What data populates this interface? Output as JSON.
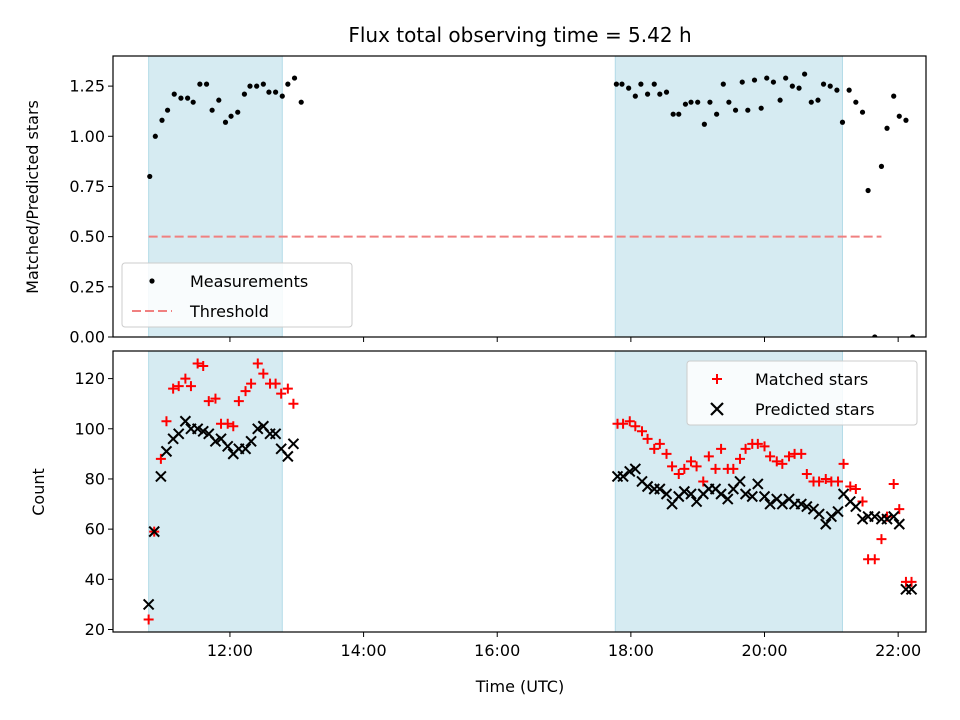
{
  "title": "Flux total observing time = 5.42 h",
  "colors": {
    "shade": "#add8e6",
    "threshold": "#f08080",
    "matched": "#ff0000",
    "predicted": "#000000",
    "measurement": "#000000"
  },
  "chart_data": [
    {
      "type": "scatter",
      "ylabel": "Matched/Predicted stars",
      "ylim": [
        0.0,
        1.4
      ],
      "yticks": [
        "0.00",
        "0.25",
        "0.50",
        "0.75",
        "1.00",
        "1.25"
      ],
      "xlim": [
        "10:15",
        "22:25"
      ],
      "shaded_intervals": [
        [
          "10:47",
          "12:47"
        ],
        [
          "17:46",
          "21:10"
        ]
      ],
      "legend": {
        "placement": "lower-left",
        "entries": [
          "Measurements",
          "Threshold"
        ]
      },
      "threshold": {
        "value": 0.5,
        "from": "10:47",
        "to": "21:45"
      },
      "series": [
        {
          "name": "Measurements",
          "points": [
            [
              "10:48",
              0.8
            ],
            [
              "10:53",
              1.0
            ],
            [
              "10:59",
              1.08
            ],
            [
              "11:04",
              1.13
            ],
            [
              "11:10",
              1.21
            ],
            [
              "11:16",
              1.19
            ],
            [
              "11:22",
              1.19
            ],
            [
              "11:27",
              1.17
            ],
            [
              "11:33",
              1.26
            ],
            [
              "11:39",
              1.26
            ],
            [
              "11:44",
              1.13
            ],
            [
              "11:50",
              1.18
            ],
            [
              "11:56",
              1.07
            ],
            [
              "12:01",
              1.1
            ],
            [
              "12:07",
              1.12
            ],
            [
              "12:13",
              1.21
            ],
            [
              "12:18",
              1.25
            ],
            [
              "12:24",
              1.25
            ],
            [
              "12:30",
              1.26
            ],
            [
              "12:35",
              1.22
            ],
            [
              "12:41",
              1.22
            ],
            [
              "12:47",
              1.2
            ],
            [
              "12:52",
              1.26
            ],
            [
              "12:58",
              1.29
            ],
            [
              "13:04",
              1.17
            ],
            [
              "17:47",
              1.26
            ],
            [
              "17:52",
              1.26
            ],
            [
              "17:58",
              1.24
            ],
            [
              "18:04",
              1.2
            ],
            [
              "18:09",
              1.26
            ],
            [
              "18:15",
              1.21
            ],
            [
              "18:21",
              1.26
            ],
            [
              "18:26",
              1.21
            ],
            [
              "18:32",
              1.22
            ],
            [
              "18:38",
              1.11
            ],
            [
              "18:43",
              1.11
            ],
            [
              "18:49",
              1.16
            ],
            [
              "18:54",
              1.17
            ],
            [
              "19:00",
              1.17
            ],
            [
              "19:06",
              1.06
            ],
            [
              "19:11",
              1.17
            ],
            [
              "19:17",
              1.11
            ],
            [
              "19:23",
              1.26
            ],
            [
              "19:28",
              1.17
            ],
            [
              "19:34",
              1.13
            ],
            [
              "19:40",
              1.27
            ],
            [
              "19:45",
              1.13
            ],
            [
              "19:51",
              1.28
            ],
            [
              "19:57",
              1.14
            ],
            [
              "20:02",
              1.29
            ],
            [
              "20:08",
              1.27
            ],
            [
              "20:14",
              1.18
            ],
            [
              "20:19",
              1.29
            ],
            [
              "20:25",
              1.25
            ],
            [
              "20:31",
              1.24
            ],
            [
              "20:36",
              1.31
            ],
            [
              "20:42",
              1.17
            ],
            [
              "20:48",
              1.18
            ],
            [
              "20:53",
              1.26
            ],
            [
              "20:59",
              1.25
            ],
            [
              "21:05",
              1.23
            ],
            [
              "21:10",
              1.07
            ],
            [
              "21:16",
              1.23
            ],
            [
              "21:22",
              1.17
            ],
            [
              "21:28",
              1.12
            ],
            [
              "21:33",
              0.73
            ],
            [
              "21:39",
              0.0
            ],
            [
              "21:45",
              0.85
            ],
            [
              "21:50",
              1.04
            ],
            [
              "21:56",
              1.2
            ],
            [
              "22:01",
              1.1
            ],
            [
              "22:07",
              1.08
            ],
            [
              "22:13",
              0.0
            ]
          ]
        }
      ]
    },
    {
      "type": "scatter",
      "xlabel": "Time (UTC)",
      "ylabel": "Count",
      "ylim": [
        19,
        131
      ],
      "yticks": [
        "20",
        "40",
        "60",
        "80",
        "100",
        "120"
      ],
      "xlim": [
        "10:15",
        "22:25"
      ],
      "xticks": [
        "12:00",
        "14:00",
        "16:00",
        "18:00",
        "20:00",
        "22:00"
      ],
      "shaded_intervals": [
        [
          "10:47",
          "12:47"
        ],
        [
          "17:46",
          "21:10"
        ]
      ],
      "legend": {
        "placement": "upper-right",
        "entries": [
          "Matched stars",
          "Predicted stars"
        ]
      },
      "series": [
        {
          "name": "Matched stars",
          "marker": "plus",
          "points": [
            [
              "10:47",
              24
            ],
            [
              "10:52",
              59
            ],
            [
              "10:58",
              88
            ],
            [
              "11:03",
              103
            ],
            [
              "11:09",
              116
            ],
            [
              "11:14",
              117
            ],
            [
              "11:20",
              120
            ],
            [
              "11:25",
              117
            ],
            [
              "11:31",
              126
            ],
            [
              "11:36",
              125
            ],
            [
              "11:41",
              111
            ],
            [
              "11:47",
              112
            ],
            [
              "11:52",
              102
            ],
            [
              "11:58",
              102
            ],
            [
              "12:03",
              101
            ],
            [
              "12:08",
              111
            ],
            [
              "12:14",
              115
            ],
            [
              "12:19",
              118
            ],
            [
              "12:25",
              126
            ],
            [
              "12:30",
              122
            ],
            [
              "12:36",
              118
            ],
            [
              "12:41",
              118
            ],
            [
              "12:46",
              114
            ],
            [
              "12:52",
              116
            ],
            [
              "12:57",
              110
            ],
            [
              "17:48",
              102
            ],
            [
              "17:53",
              102
            ],
            [
              "17:59",
              103
            ],
            [
              "18:04",
              101
            ],
            [
              "18:10",
              99
            ],
            [
              "18:15",
              96
            ],
            [
              "18:21",
              92
            ],
            [
              "18:26",
              94
            ],
            [
              "18:32",
              90
            ],
            [
              "18:37",
              85
            ],
            [
              "18:43",
              82
            ],
            [
              "18:48",
              84
            ],
            [
              "18:54",
              87
            ],
            [
              "18:59",
              85
            ],
            [
              "19:05",
              79
            ],
            [
              "19:10",
              89
            ],
            [
              "19:16",
              84
            ],
            [
              "19:21",
              92
            ],
            [
              "19:27",
              84
            ],
            [
              "19:32",
              84
            ],
            [
              "19:38",
              88
            ],
            [
              "19:43",
              92
            ],
            [
              "19:49",
              94
            ],
            [
              "19:54",
              94
            ],
            [
              "20:00",
              93
            ],
            [
              "20:05",
              89
            ],
            [
              "20:11",
              87
            ],
            [
              "20:16",
              86
            ],
            [
              "20:22",
              89
            ],
            [
              "20:27",
              90
            ],
            [
              "20:33",
              90
            ],
            [
              "20:38",
              82
            ],
            [
              "20:44",
              79
            ],
            [
              "20:49",
              79
            ],
            [
              "20:55",
              80
            ],
            [
              "21:00",
              79
            ],
            [
              "21:06",
              79
            ],
            [
              "21:11",
              86
            ],
            [
              "21:17",
              77
            ],
            [
              "21:22",
              76
            ],
            [
              "21:28",
              71
            ],
            [
              "21:33",
              48
            ],
            [
              "21:39",
              48
            ],
            [
              "21:45",
              56
            ],
            [
              "21:50",
              65
            ],
            [
              "21:56",
              78
            ],
            [
              "22:01",
              68
            ],
            [
              "22:07",
              39
            ],
            [
              "22:12",
              39
            ]
          ]
        },
        {
          "name": "Predicted stars",
          "marker": "x",
          "points": [
            [
              "10:47",
              30
            ],
            [
              "10:52",
              59
            ],
            [
              "10:58",
              81
            ],
            [
              "11:03",
              91
            ],
            [
              "11:09",
              96
            ],
            [
              "11:14",
              98
            ],
            [
              "11:20",
              103
            ],
            [
              "11:25",
              100
            ],
            [
              "11:31",
              100
            ],
            [
              "11:36",
              99
            ],
            [
              "11:41",
              98
            ],
            [
              "11:47",
              95
            ],
            [
              "11:52",
              96
            ],
            [
              "11:58",
              93
            ],
            [
              "12:03",
              90
            ],
            [
              "12:08",
              92
            ],
            [
              "12:14",
              92
            ],
            [
              "12:19",
              95
            ],
            [
              "12:25",
              100
            ],
            [
              "12:30",
              101
            ],
            [
              "12:36",
              98
            ],
            [
              "12:41",
              98
            ],
            [
              "12:46",
              92
            ],
            [
              "12:52",
              89
            ],
            [
              "12:57",
              94
            ],
            [
              "17:48",
              81
            ],
            [
              "17:53",
              81
            ],
            [
              "17:59",
              83
            ],
            [
              "18:04",
              84
            ],
            [
              "18:10",
              79
            ],
            [
              "18:15",
              77
            ],
            [
              "18:21",
              76
            ],
            [
              "18:26",
              76
            ],
            [
              "18:32",
              74
            ],
            [
              "18:37",
              70
            ],
            [
              "18:43",
              73
            ],
            [
              "18:48",
              75
            ],
            [
              "18:54",
              74
            ],
            [
              "18:59",
              71
            ],
            [
              "19:05",
              74
            ],
            [
              "19:10",
              76
            ],
            [
              "19:16",
              76
            ],
            [
              "19:21",
              74
            ],
            [
              "19:27",
              72
            ],
            [
              "19:32",
              76
            ],
            [
              "19:38",
              79
            ],
            [
              "19:43",
              74
            ],
            [
              "19:49",
              73
            ],
            [
              "19:54",
              78
            ],
            [
              "20:00",
              73
            ],
            [
              "20:05",
              70
            ],
            [
              "20:11",
              72
            ],
            [
              "20:16",
              70
            ],
            [
              "20:22",
              72
            ],
            [
              "20:27",
              70
            ],
            [
              "20:33",
              70
            ],
            [
              "20:38",
              69
            ],
            [
              "20:44",
              68
            ],
            [
              "20:49",
              66
            ],
            [
              "20:55",
              62
            ],
            [
              "21:00",
              65
            ],
            [
              "21:06",
              67
            ],
            [
              "21:11",
              74
            ],
            [
              "21:17",
              71
            ],
            [
              "21:22",
              69
            ],
            [
              "21:28",
              64
            ],
            [
              "21:33",
              65
            ],
            [
              "21:39",
              65
            ],
            [
              "21:45",
              64
            ],
            [
              "21:50",
              64
            ],
            [
              "21:56",
              65
            ],
            [
              "22:01",
              62
            ],
            [
              "22:07",
              36
            ],
            [
              "22:12",
              36
            ]
          ]
        }
      ]
    }
  ]
}
